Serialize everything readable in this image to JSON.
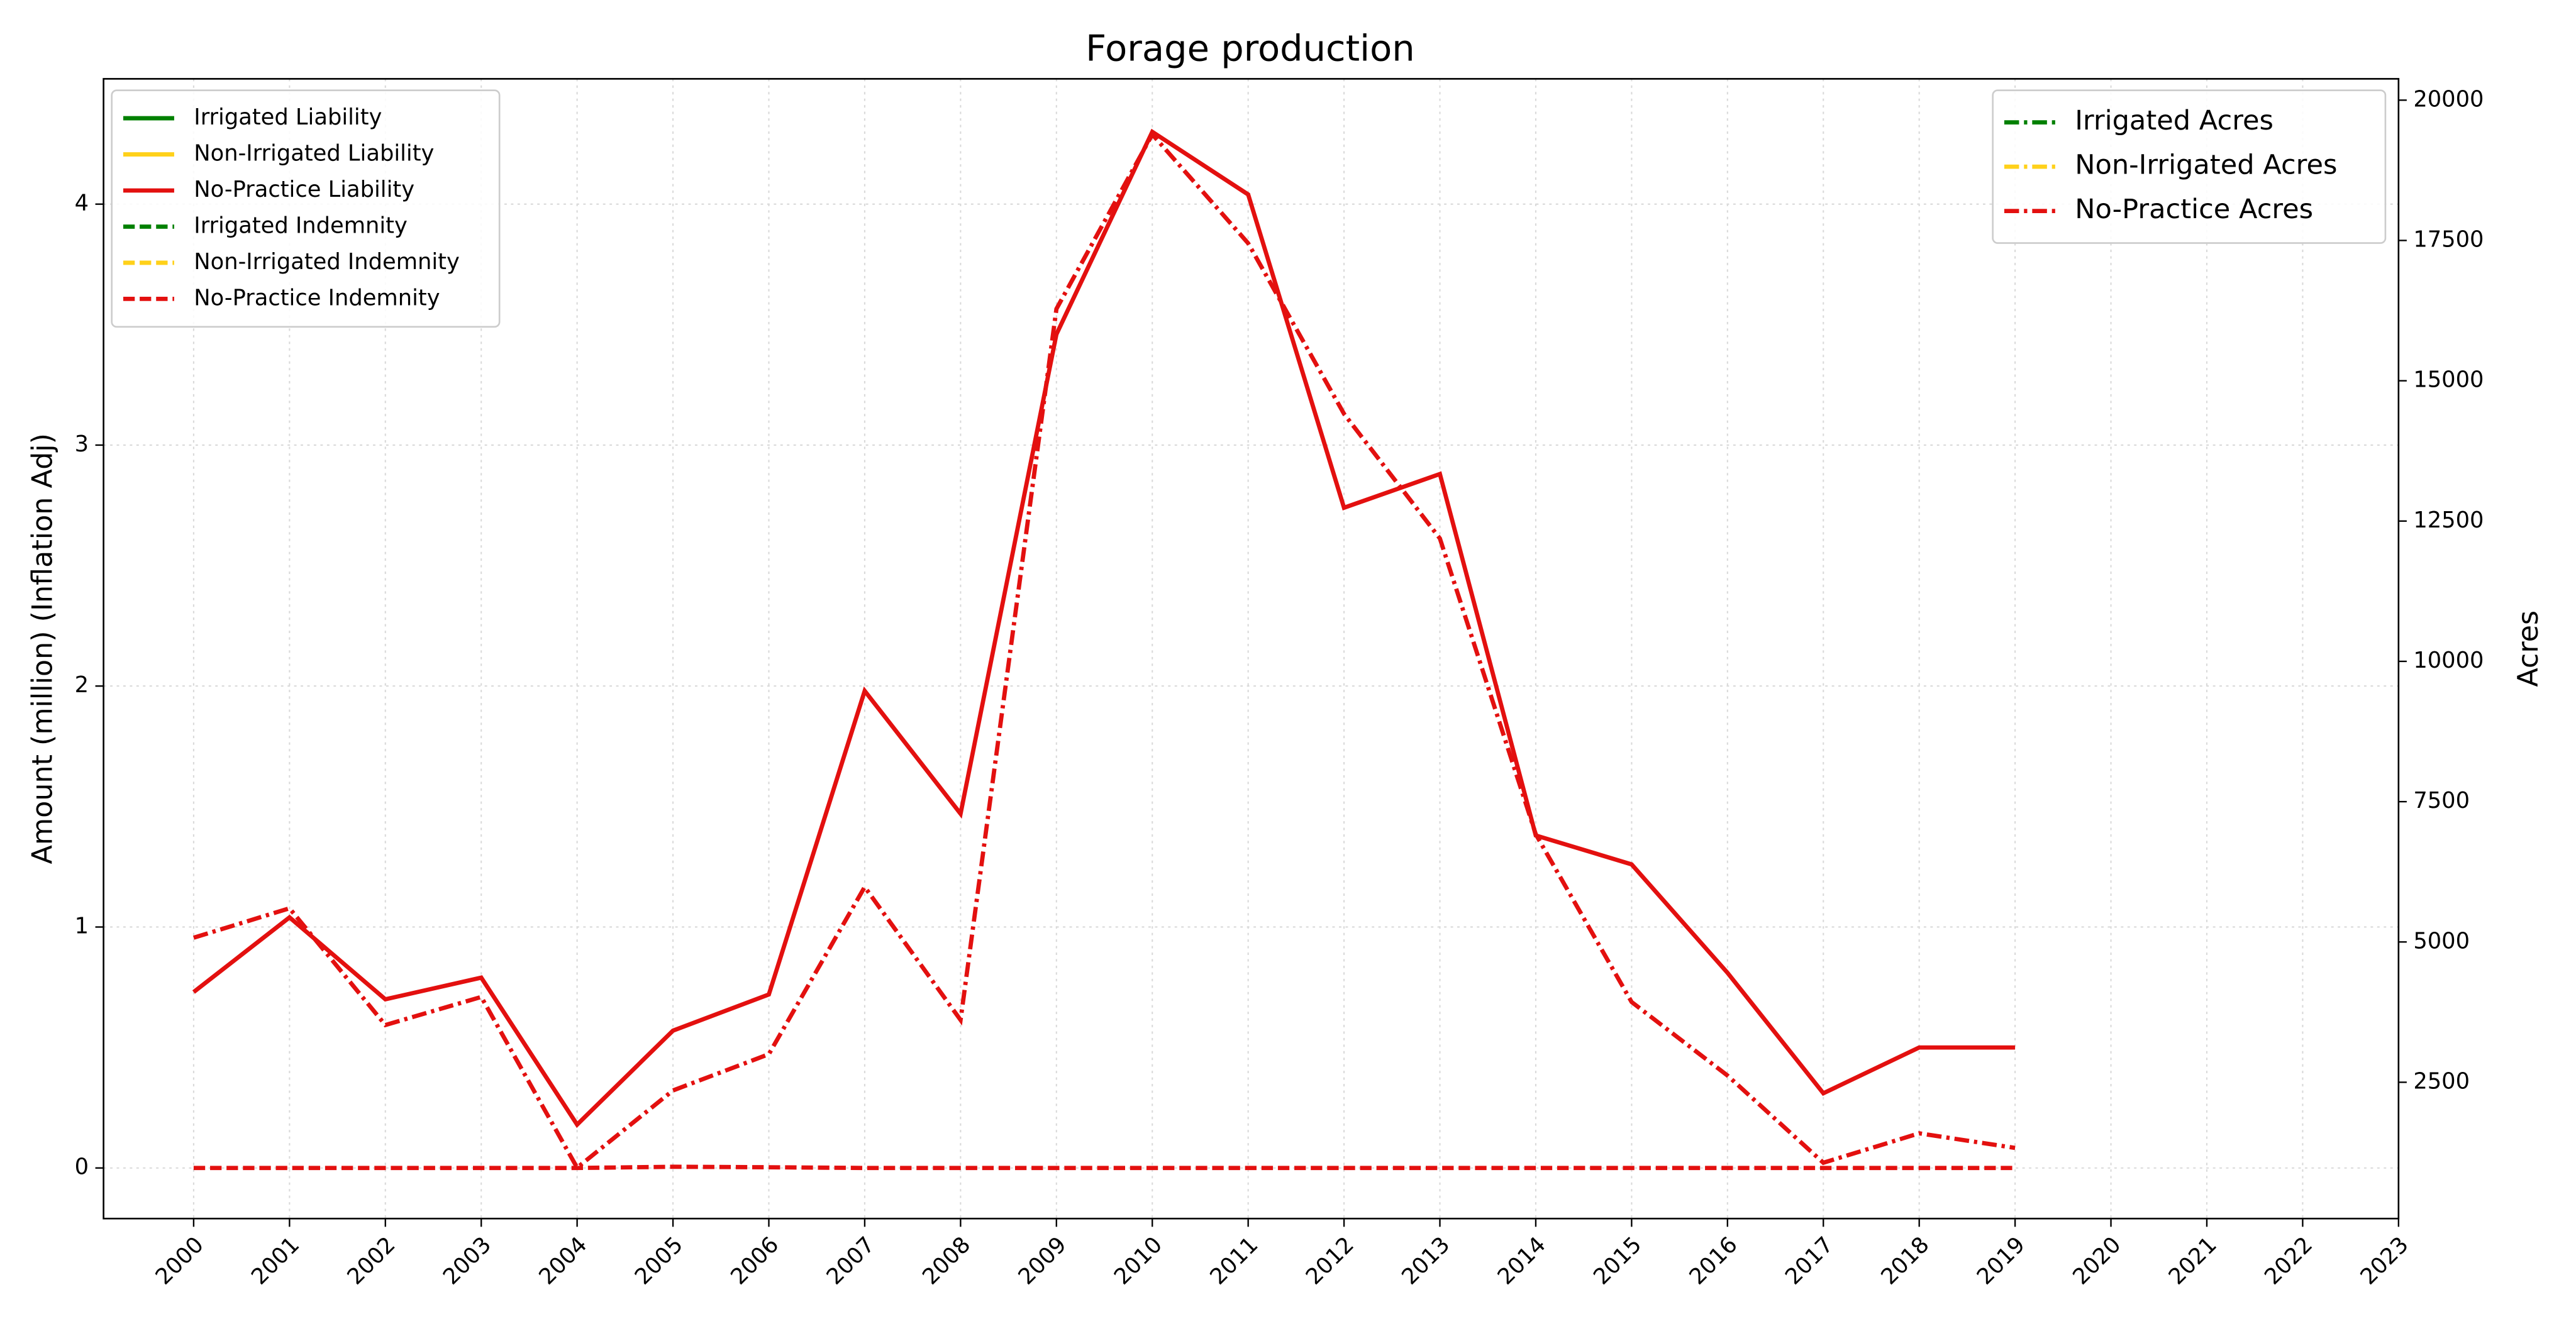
{
  "chart_data": {
    "type": "line",
    "title": "Forage production",
    "y_label": "Amount (million) (Inflation Adj)",
    "y2_label": "Acres",
    "x": [
      2000,
      2001,
      2002,
      2003,
      2004,
      2005,
      2006,
      2007,
      2008,
      2009,
      2010,
      2011,
      2012,
      2013,
      2014,
      2015,
      2016,
      2017,
      2018,
      2019
    ],
    "xlim": [
      1999.06,
      2023
    ],
    "xticks": [
      2000,
      2001,
      2002,
      2003,
      2004,
      2005,
      2006,
      2007,
      2008,
      2009,
      2010,
      2011,
      2012,
      2013,
      2014,
      2015,
      2016,
      2017,
      2018,
      2019,
      2020,
      2021,
      2022,
      2023
    ],
    "ylim": [
      -0.21,
      4.52
    ],
    "yticks": [
      0,
      1,
      2,
      3,
      4
    ],
    "y2lim": [
      71,
      20380
    ],
    "y2ticks": [
      2500,
      5000,
      7500,
      10000,
      12500,
      15000,
      17500,
      20000
    ],
    "grid": true,
    "legend_loc": {
      "y": "upper left",
      "y2": "upper right"
    },
    "series": [
      {
        "name": "Irrigated Liability",
        "color": "#008000",
        "linestyle": "solid",
        "axis": "y",
        "values": [
          null,
          null,
          null,
          null,
          null,
          null,
          null,
          null,
          null,
          null,
          null,
          null,
          null,
          null,
          null,
          null,
          null,
          null,
          null,
          null
        ]
      },
      {
        "name": "Non-Irrigated Liability",
        "color": "#ffd11a",
        "linestyle": "solid",
        "axis": "y",
        "values": [
          null,
          null,
          null,
          null,
          null,
          null,
          null,
          null,
          null,
          null,
          null,
          null,
          null,
          null,
          null,
          null,
          null,
          null,
          null,
          null
        ]
      },
      {
        "name": "No-Practice Liability",
        "color": "#e3100f",
        "linestyle": "solid",
        "axis": "y",
        "values": [
          0.73,
          1.04,
          0.7,
          0.79,
          0.18,
          0.57,
          0.72,
          1.98,
          1.47,
          3.46,
          4.3,
          4.04,
          2.74,
          2.88,
          1.38,
          1.26,
          0.81,
          0.31,
          0.5,
          0.5
        ]
      },
      {
        "name": "Irrigated Indemnity",
        "color": "#008000",
        "linestyle": "dashed",
        "axis": "y",
        "values": [
          null,
          null,
          null,
          null,
          null,
          null,
          null,
          null,
          null,
          null,
          null,
          null,
          null,
          null,
          null,
          null,
          null,
          null,
          null,
          null
        ]
      },
      {
        "name": "Non-Irrigated Indemnity",
        "color": "#ffd11a",
        "linestyle": "dashed",
        "axis": "y",
        "values": [
          null,
          null,
          null,
          null,
          null,
          null,
          null,
          null,
          null,
          null,
          null,
          null,
          null,
          null,
          null,
          null,
          null,
          null,
          null,
          null
        ]
      },
      {
        "name": "No-Practice Indemnity",
        "color": "#e3100f",
        "linestyle": "dashed",
        "axis": "y",
        "values": [
          0,
          0,
          0,
          0,
          0,
          0.005,
          0.003,
          0,
          0,
          0,
          0,
          0,
          0,
          0,
          0,
          0,
          0,
          0,
          0,
          0
        ]
      },
      {
        "name": "Irrigated Acres",
        "color": "#008000",
        "linestyle": "dashdot",
        "axis": "y2",
        "values": [
          null,
          null,
          null,
          null,
          null,
          null,
          null,
          null,
          null,
          null,
          null,
          null,
          null,
          null,
          null,
          null,
          null,
          null,
          null,
          null
        ]
      },
      {
        "name": "Non-Irrigated Acres",
        "color": "#ffd11a",
        "linestyle": "dashdot",
        "axis": "y2",
        "values": [
          null,
          null,
          null,
          null,
          null,
          null,
          null,
          null,
          null,
          null,
          null,
          null,
          null,
          null,
          null,
          null,
          null,
          null,
          null,
          null
        ]
      },
      {
        "name": "No-Practice Acres",
        "color": "#e3100f",
        "linestyle": "dashdot",
        "axis": "y2",
        "values": [
          5075,
          5600,
          3520,
          4020,
          978,
          2354,
          3000,
          5980,
          3610,
          16280,
          19390,
          17450,
          14410,
          12190,
          6920,
          3930,
          2620,
          1066,
          1590,
          1330
        ]
      }
    ]
  }
}
